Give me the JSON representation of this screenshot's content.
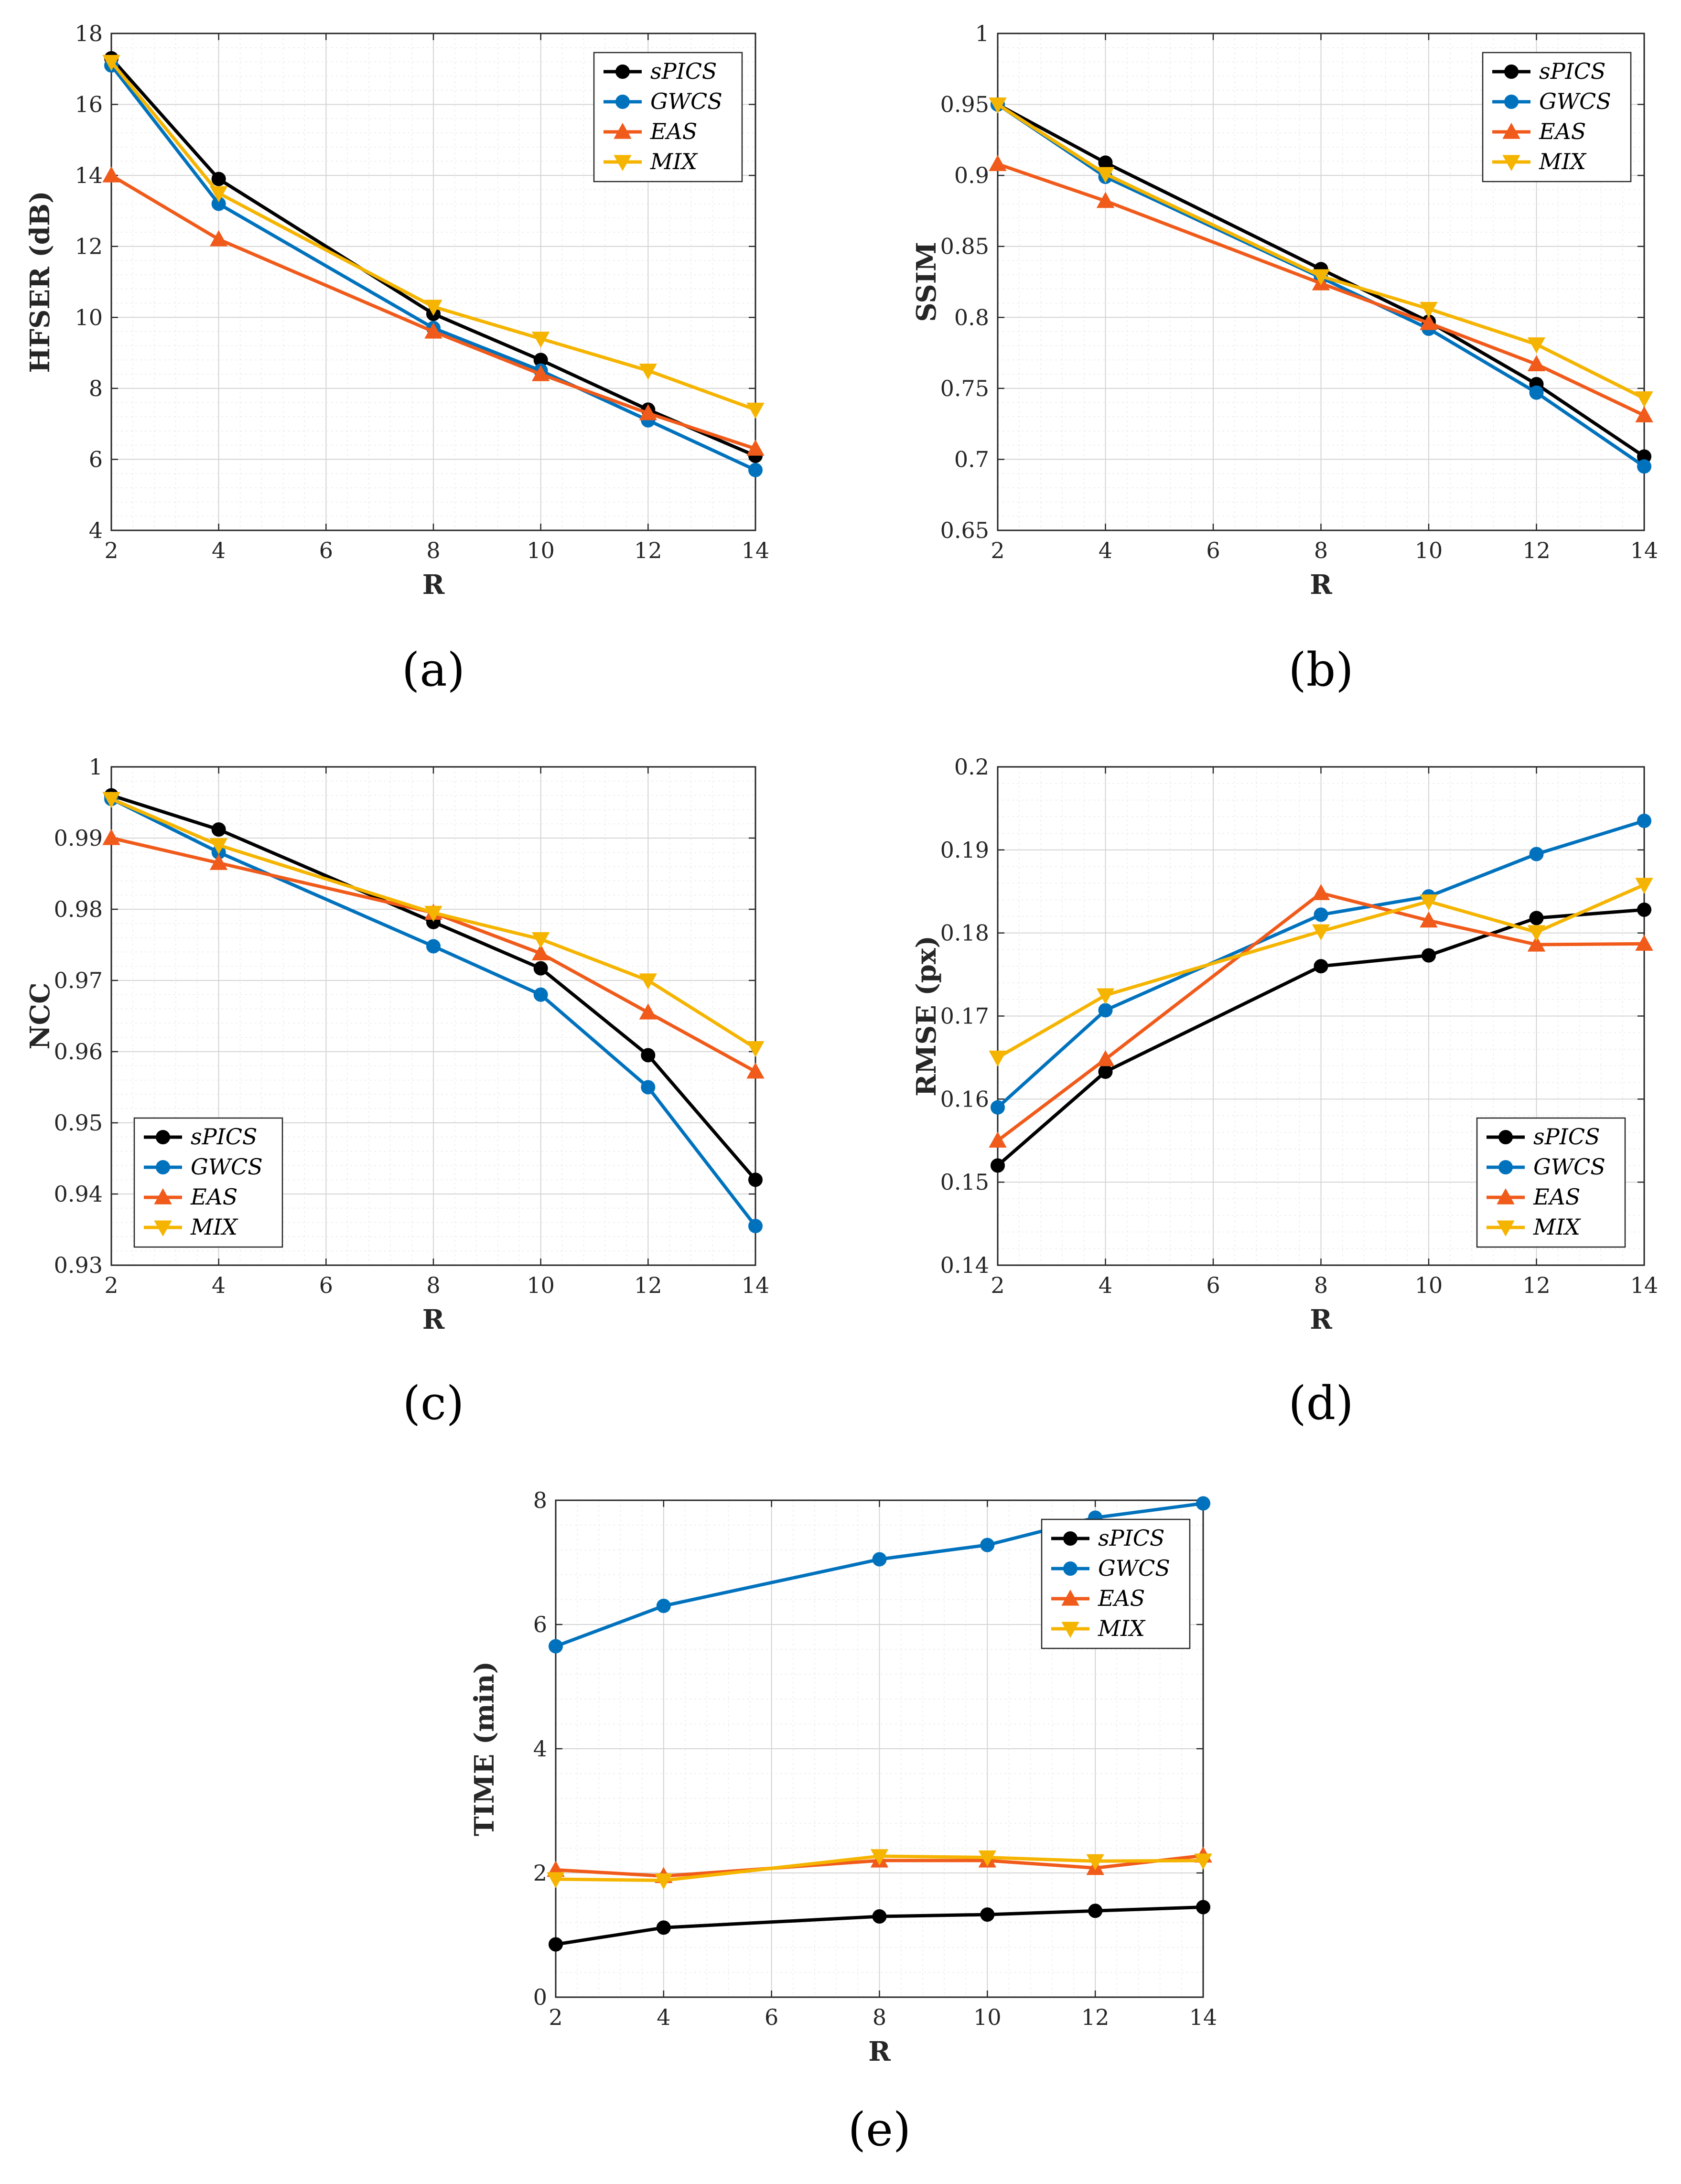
{
  "series_styles": [
    {
      "name": "sPICS",
      "color": "#000000",
      "marker": "circle"
    },
    {
      "name": "GWCS",
      "color": "#0072BD",
      "marker": "circle"
    },
    {
      "name": "EAS",
      "color": "#F05A1A",
      "marker": "triangle-up"
    },
    {
      "name": "MIX",
      "color": "#F5B400",
      "marker": "triangle-down"
    }
  ],
  "chart_data": [
    {
      "id": "a",
      "type": "line",
      "caption": "(a)",
      "xlabel": "R",
      "ylabel": "HFSER (dB)",
      "x": [
        2,
        4,
        8,
        10,
        12,
        14
      ],
      "xlim": [
        2,
        14
      ],
      "xticks": [
        2,
        4,
        6,
        8,
        10,
        12,
        14
      ],
      "ylim": [
        4,
        18
      ],
      "yticks": [
        4,
        6,
        8,
        10,
        12,
        14,
        16,
        18
      ],
      "yticklabels": [
        "4",
        "6",
        "8",
        "10",
        "12",
        "14",
        "16",
        "18"
      ],
      "grid": true,
      "legend_position": "top-right",
      "series": [
        {
          "name": "sPICS",
          "values": [
            17.3,
            13.9,
            10.1,
            8.8,
            7.4,
            6.1
          ]
        },
        {
          "name": "GWCS",
          "values": [
            17.1,
            13.2,
            9.7,
            8.5,
            7.1,
            5.7
          ]
        },
        {
          "name": "EAS",
          "values": [
            14.0,
            12.2,
            9.6,
            8.4,
            7.3,
            6.3
          ]
        },
        {
          "name": "MIX",
          "values": [
            17.2,
            13.5,
            10.3,
            9.4,
            8.5,
            7.4
          ]
        }
      ]
    },
    {
      "id": "b",
      "type": "line",
      "caption": "(b)",
      "xlabel": "R",
      "ylabel": "SSIM",
      "x": [
        2,
        4,
        8,
        10,
        12,
        14
      ],
      "xlim": [
        2,
        14
      ],
      "xticks": [
        2,
        4,
        6,
        8,
        10,
        12,
        14
      ],
      "ylim": [
        0.65,
        1
      ],
      "yticks": [
        0.65,
        0.7,
        0.75,
        0.8,
        0.85,
        0.9,
        0.95,
        1
      ],
      "yticklabels": [
        "0.65",
        "0.7",
        "0.75",
        "0.8",
        "0.85",
        "0.9",
        "0.95",
        "1"
      ],
      "grid": true,
      "legend_position": "top-right",
      "series": [
        {
          "name": "sPICS",
          "values": [
            0.95,
            0.909,
            0.834,
            0.797,
            0.753,
            0.702
          ]
        },
        {
          "name": "GWCS",
          "values": [
            0.95,
            0.899,
            0.828,
            0.792,
            0.747,
            0.695
          ]
        },
        {
          "name": "EAS",
          "values": [
            0.908,
            0.882,
            0.824,
            0.796,
            0.767,
            0.731
          ]
        },
        {
          "name": "MIX",
          "values": [
            0.95,
            0.901,
            0.829,
            0.806,
            0.781,
            0.743
          ]
        }
      ]
    },
    {
      "id": "c",
      "type": "line",
      "caption": "(c)",
      "xlabel": "R",
      "ylabel": "NCC",
      "x": [
        2,
        4,
        8,
        10,
        12,
        14
      ],
      "xlim": [
        2,
        14
      ],
      "xticks": [
        2,
        4,
        6,
        8,
        10,
        12,
        14
      ],
      "ylim": [
        0.93,
        1
      ],
      "yticks": [
        0.93,
        0.94,
        0.95,
        0.96,
        0.97,
        0.98,
        0.99,
        1
      ],
      "yticklabels": [
        "0.93",
        "0.94",
        "0.95",
        "0.96",
        "0.97",
        "0.98",
        "0.99",
        "1"
      ],
      "grid": true,
      "legend_position": "bottom-left",
      "series": [
        {
          "name": "sPICS",
          "values": [
            0.996,
            0.9912,
            0.9782,
            0.9717,
            0.9595,
            0.942
          ]
        },
        {
          "name": "GWCS",
          "values": [
            0.9955,
            0.988,
            0.9748,
            0.968,
            0.955,
            0.9355
          ]
        },
        {
          "name": "EAS",
          "values": [
            0.99,
            0.9865,
            0.9795,
            0.9738,
            0.9655,
            0.9572
          ]
        },
        {
          "name": "MIX",
          "values": [
            0.9955,
            0.989,
            0.9795,
            0.9758,
            0.97,
            0.9605
          ]
        }
      ]
    },
    {
      "id": "d",
      "type": "line",
      "caption": "(d)",
      "xlabel": "R",
      "ylabel": "RMSE (px)",
      "x": [
        2,
        4,
        8,
        10,
        12,
        14
      ],
      "xlim": [
        2,
        14
      ],
      "xticks": [
        2,
        4,
        6,
        8,
        10,
        12,
        14
      ],
      "ylim": [
        0.14,
        0.2
      ],
      "yticks": [
        0.14,
        0.15,
        0.16,
        0.17,
        0.18,
        0.19,
        0.2
      ],
      "yticklabels": [
        "0.14",
        "0.15",
        "0.16",
        "0.17",
        "0.18",
        "0.19",
        "0.2"
      ],
      "grid": true,
      "legend_position": "bottom-right",
      "series": [
        {
          "name": "sPICS",
          "values": [
            0.152,
            0.1633,
            0.176,
            0.1773,
            0.1818,
            0.1828
          ]
        },
        {
          "name": "GWCS",
          "values": [
            0.159,
            0.1707,
            0.1822,
            0.1844,
            0.1895,
            0.1935
          ]
        },
        {
          "name": "EAS",
          "values": [
            0.155,
            0.1648,
            0.1848,
            0.1815,
            0.1786,
            0.1787
          ]
        },
        {
          "name": "MIX",
          "values": [
            0.165,
            0.1725,
            0.1802,
            0.1838,
            0.1801,
            0.1858
          ]
        }
      ]
    },
    {
      "id": "e",
      "type": "line",
      "caption": "(e)",
      "xlabel": "R",
      "ylabel": "TIME (min)",
      "x": [
        2,
        4,
        8,
        10,
        12,
        14
      ],
      "xlim": [
        2,
        14
      ],
      "xticks": [
        2,
        4,
        6,
        8,
        10,
        12,
        14
      ],
      "ylim": [
        0,
        8
      ],
      "yticks": [
        0,
        2,
        4,
        6,
        8
      ],
      "yticklabels": [
        "0",
        "2",
        "4",
        "6",
        "8"
      ],
      "grid": true,
      "legend_position": "top-right",
      "series": [
        {
          "name": "sPICS",
          "values": [
            0.85,
            1.12,
            1.3,
            1.33,
            1.39,
            1.45
          ]
        },
        {
          "name": "GWCS",
          "values": [
            5.65,
            6.3,
            7.05,
            7.28,
            7.72,
            7.95
          ]
        },
        {
          "name": "EAS",
          "values": [
            2.05,
            1.95,
            2.2,
            2.2,
            2.08,
            2.28
          ]
        },
        {
          "name": "MIX",
          "values": [
            1.9,
            1.88,
            2.27,
            2.25,
            2.19,
            2.2
          ]
        }
      ]
    }
  ]
}
